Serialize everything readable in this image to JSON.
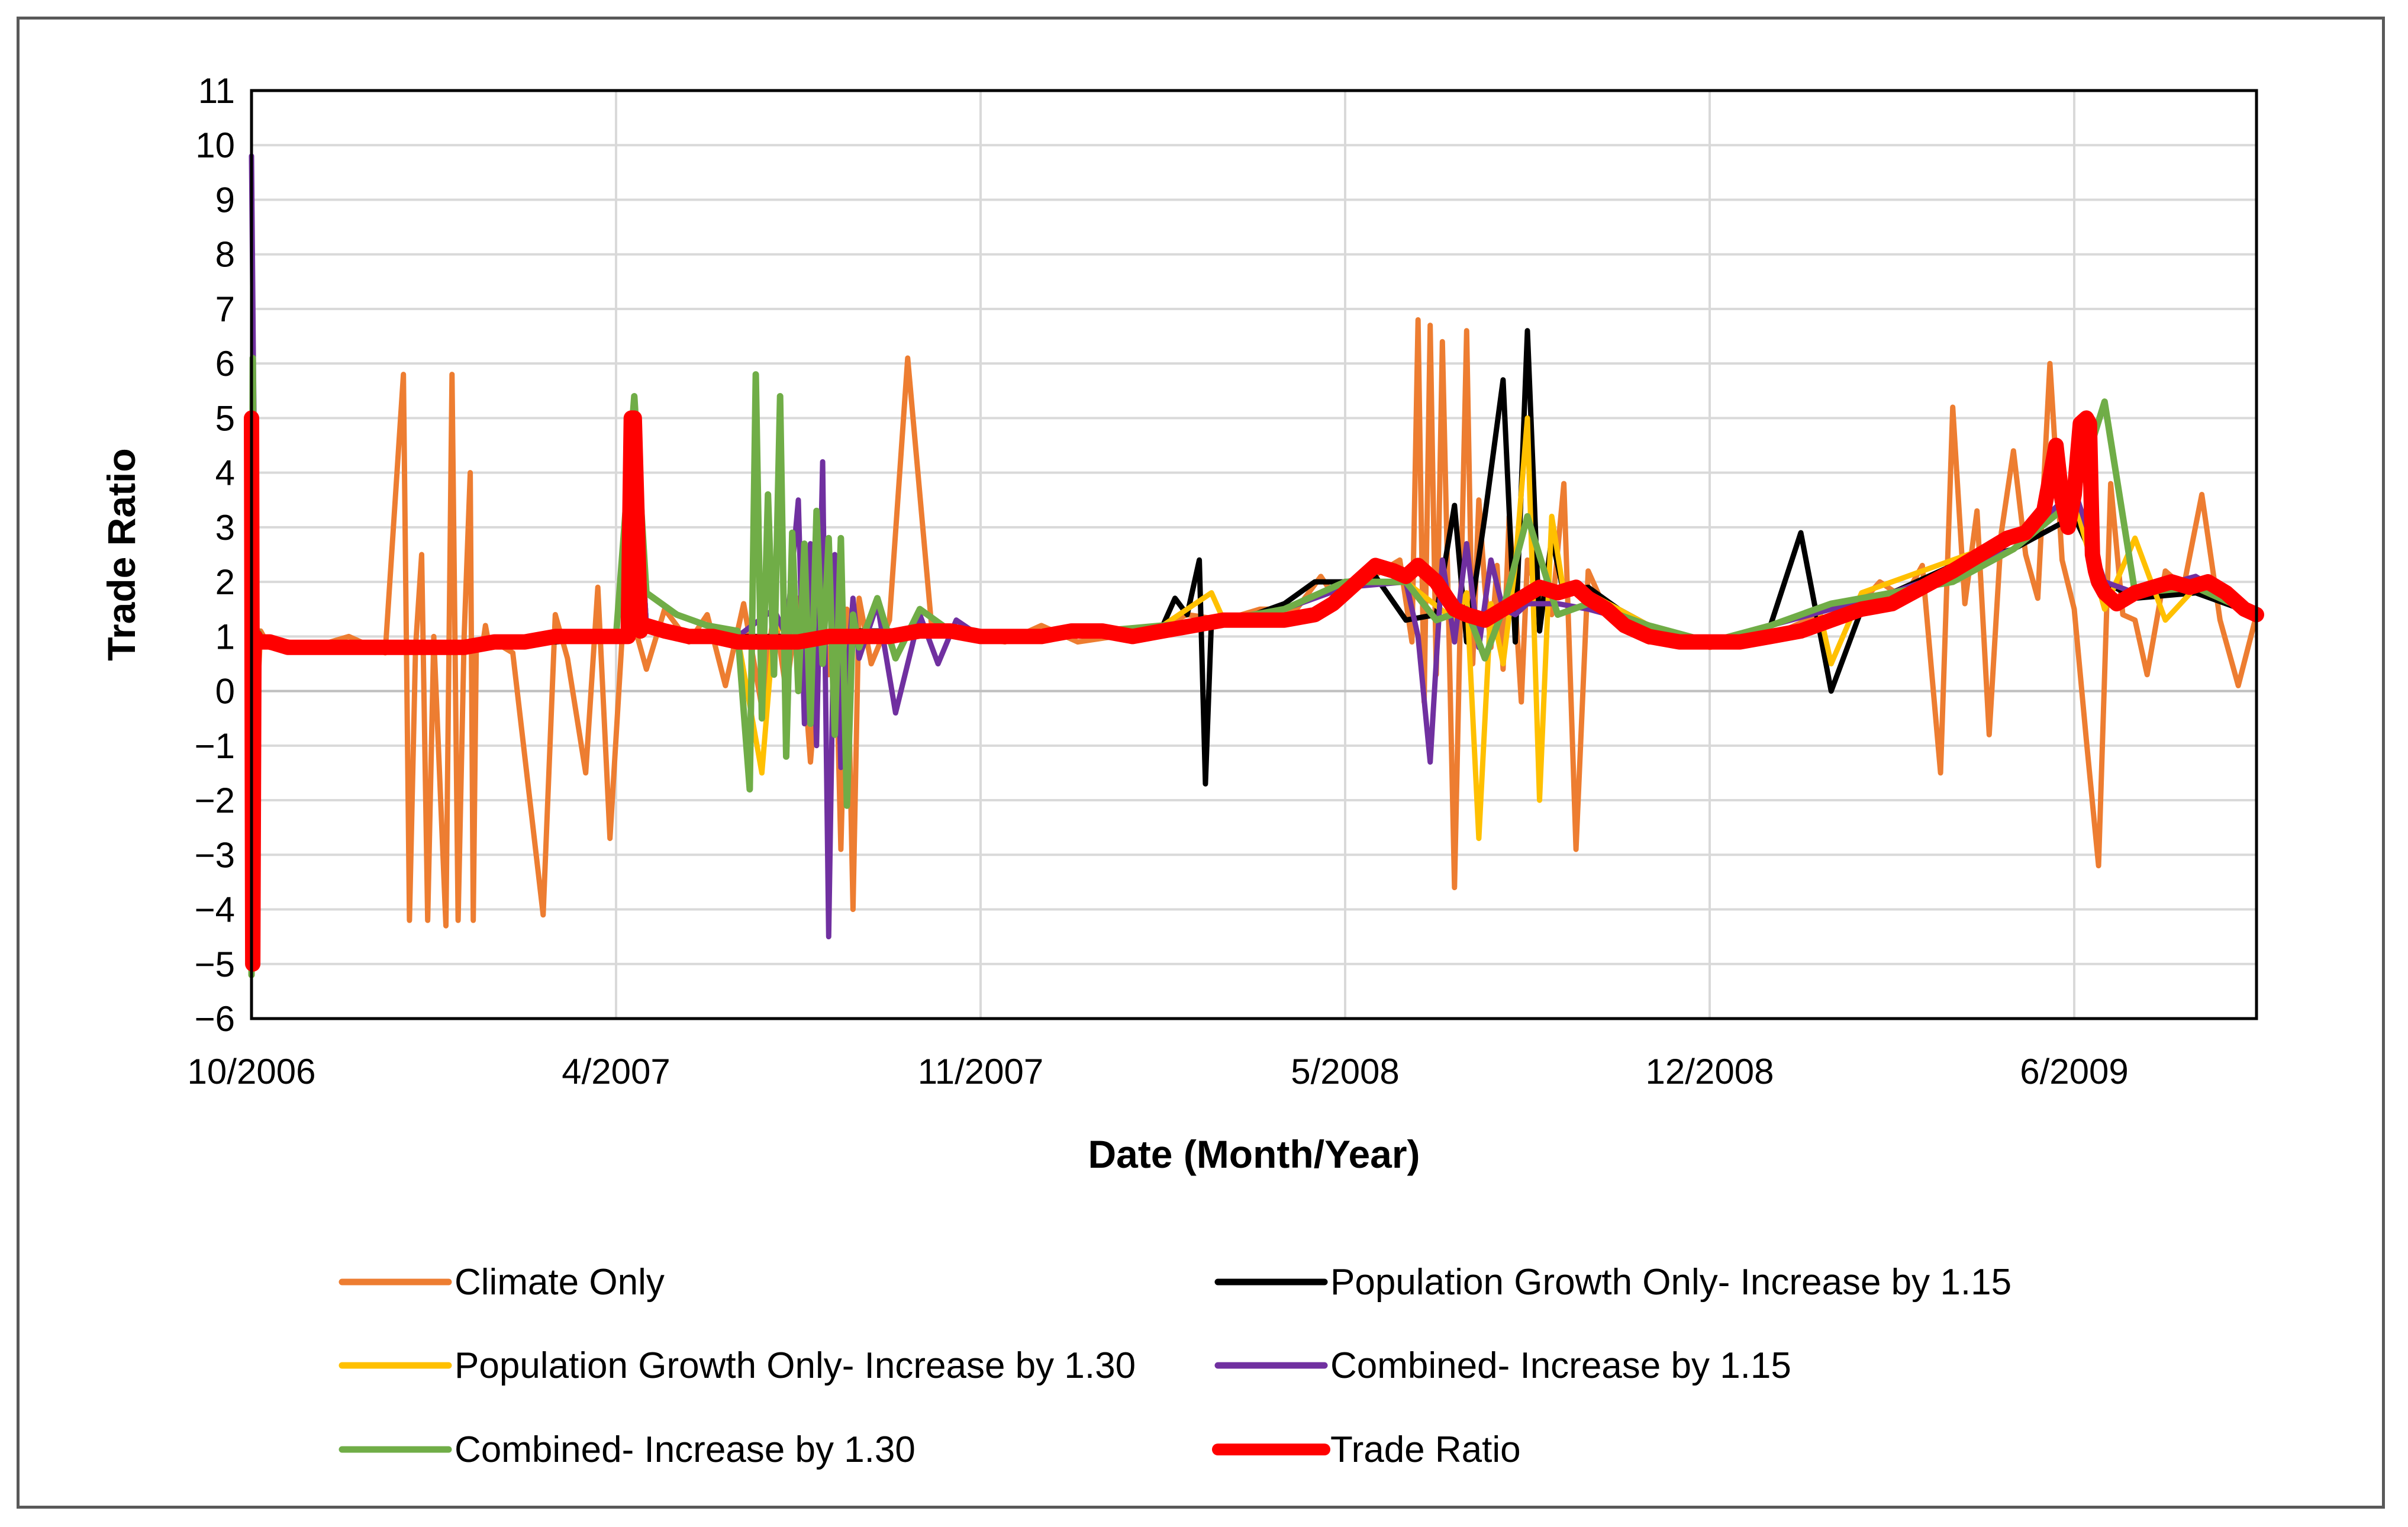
{
  "chart_data": {
    "type": "line",
    "title": "",
    "xlabel": "Date (Month/Year)",
    "ylabel": "Trade Ratio",
    "ylim": [
      -6,
      11
    ],
    "yticks": [
      -6,
      -5,
      -4,
      -3,
      -2,
      -1,
      0,
      1,
      2,
      3,
      4,
      5,
      6,
      7,
      8,
      9,
      10,
      11
    ],
    "ytick_labels": [
      "−6",
      "−5",
      "−4",
      "−3",
      "−2",
      "−1",
      "0",
      "1",
      "2",
      "3",
      "4",
      "5",
      "6",
      "7",
      "8",
      "9",
      "10",
      "11"
    ],
    "x_unit": "months since 10/2006",
    "xlim": [
      0,
      33
    ],
    "xticks": [
      0,
      6,
      12,
      18,
      24,
      30
    ],
    "xtick_labels": [
      "10/2006",
      "4/2007",
      "11/2007",
      "5/2008",
      "12/2008",
      "6/2009"
    ],
    "grid": true,
    "legend_position": "bottom",
    "series": [
      {
        "name": "Climate Only",
        "color": "#ED7D31",
        "x": [
          0.0,
          0.05,
          0.15,
          0.3,
          0.6,
          1.0,
          1.6,
          2.2,
          2.5,
          2.6,
          2.7,
          2.8,
          2.9,
          3.0,
          3.2,
          3.3,
          3.4,
          3.5,
          3.6,
          3.65,
          3.7,
          3.8,
          3.85,
          3.9,
          4.0,
          4.3,
          4.8,
          5.0,
          5.2,
          5.5,
          5.7,
          5.9,
          6.1,
          6.3,
          6.5,
          6.8,
          7.2,
          7.5,
          7.8,
          8.1,
          8.4,
          8.6,
          8.8,
          9.0,
          9.2,
          9.4,
          9.5,
          9.6,
          9.7,
          9.8,
          9.9,
          10.0,
          10.2,
          10.5,
          10.8,
          11.2,
          11.8,
          12.4,
          13.0,
          13.6,
          14.2,
          14.8,
          15.4,
          16.0,
          16.6,
          17.2,
          17.6,
          17.9,
          18.2,
          18.6,
          18.9,
          19.1,
          19.2,
          19.3,
          19.4,
          19.5,
          19.6,
          19.7,
          19.8,
          19.9,
          20.0,
          20.1,
          20.2,
          20.3,
          20.4,
          20.5,
          20.6,
          20.7,
          20.8,
          20.9,
          21.0,
          21.2,
          21.4,
          21.6,
          21.8,
          22.0,
          22.2,
          22.4,
          22.6,
          22.8,
          23.0,
          23.5,
          24.0,
          24.4,
          24.8,
          25.2,
          25.6,
          26.0,
          26.4,
          26.8,
          27.2,
          27.5,
          27.8,
          28.0,
          28.2,
          28.4,
          28.6,
          28.8,
          29.0,
          29.2,
          29.4,
          29.6,
          29.8,
          30.0,
          30.2,
          30.4,
          30.6,
          30.8,
          31.0,
          31.2,
          31.5,
          31.8,
          32.1,
          32.4,
          32.7,
          33.0
        ],
        "y": [
          0.9,
          -1.2,
          1.1,
          0.8,
          0.9,
          0.8,
          1.0,
          0.7,
          5.8,
          -4.2,
          0.8,
          2.5,
          -4.2,
          1.0,
          -4.3,
          5.8,
          -4.2,
          1.0,
          4.0,
          -4.2,
          0.9,
          0.8,
          1.2,
          0.9,
          0.9,
          0.7,
          -4.1,
          1.4,
          0.6,
          -1.5,
          1.9,
          -2.7,
          1.0,
          1.2,
          0.4,
          1.5,
          0.9,
          1.4,
          0.1,
          1.6,
          -0.3,
          1.5,
          0.0,
          1.7,
          -1.3,
          1.4,
          0.3,
          1.6,
          -2.9,
          1.5,
          -4.0,
          1.7,
          0.5,
          1.3,
          6.1,
          1.1,
          1.0,
          0.9,
          1.2,
          0.9,
          1.0,
          1.1,
          1.4,
          1.3,
          1.5,
          1.5,
          2.1,
          1.6,
          1.9,
          2.2,
          2.4,
          0.9,
          6.8,
          -0.2,
          6.7,
          0.3,
          6.4,
          1.5,
          -3.6,
          1.6,
          6.6,
          0.5,
          3.5,
          1.9,
          0.8,
          2.3,
          0.4,
          3.2,
          1.6,
          -0.2,
          2.4,
          1.7,
          1.4,
          3.8,
          -2.9,
          2.2,
          1.7,
          1.5,
          1.2,
          1.1,
          0.9,
          1.0,
          0.8,
          0.9,
          1.0,
          1.1,
          1.3,
          1.6,
          1.5,
          2.0,
          1.7,
          2.3,
          -1.5,
          5.2,
          1.6,
          3.3,
          -0.8,
          2.9,
          4.4,
          2.5,
          1.7,
          6.0,
          2.4,
          1.5,
          -0.9,
          -3.2,
          3.8,
          1.4,
          1.3,
          0.3,
          2.2,
          1.9,
          3.6,
          1.3,
          0.1,
          1.4
        ]
      },
      {
        "name": "Population Growth Only- Increase by 1.15",
        "color": "#000000",
        "x": [
          0.0,
          0.1,
          0.5,
          1.0,
          2.0,
          3.0,
          4.0,
          5.0,
          6.0,
          6.3,
          6.5,
          7.0,
          8.0,
          9.0,
          10.0,
          11.0,
          12.0,
          13.0,
          14.0,
          15.0,
          15.2,
          15.4,
          15.6,
          15.7,
          15.8,
          16.0,
          16.5,
          17.0,
          17.5,
          18.0,
          18.5,
          19.0,
          19.5,
          19.8,
          20.0,
          20.3,
          20.6,
          20.8,
          21.0,
          21.2,
          21.4,
          21.6,
          22.0,
          22.5,
          23.0,
          24.0,
          25.0,
          25.5,
          26.0,
          26.5,
          27.0,
          28.0,
          29.0,
          30.0,
          30.5,
          31.0,
          32.0,
          33.0
        ],
        "y": [
          1.0,
          0.9,
          0.9,
          0.8,
          0.8,
          0.8,
          0.9,
          0.9,
          1.0,
          5.0,
          1.2,
          1.1,
          1.0,
          1.0,
          1.1,
          1.1,
          1.0,
          1.0,
          1.1,
          1.2,
          1.7,
          1.4,
          2.4,
          -1.7,
          1.3,
          1.3,
          1.4,
          1.6,
          2.0,
          2.0,
          2.1,
          1.3,
          1.4,
          3.4,
          0.9,
          3.2,
          5.7,
          0.9,
          6.6,
          1.1,
          2.8,
          1.8,
          1.9,
          1.5,
          1.2,
          0.9,
          1.2,
          2.9,
          0.0,
          1.5,
          1.8,
          2.3,
          2.6,
          3.2,
          2.0,
          1.7,
          1.8,
          1.4
        ]
      },
      {
        "name": "Population Growth Only- Increase by 1.30",
        "color": "#FFC000",
        "x": [
          0.0,
          0.5,
          1.0,
          2.0,
          3.0,
          4.0,
          5.0,
          6.0,
          6.3,
          6.5,
          7.0,
          8.0,
          8.4,
          8.6,
          9.0,
          10.0,
          11.0,
          12.0,
          13.0,
          14.0,
          15.0,
          15.8,
          16.0,
          17.0,
          18.0,
          19.0,
          19.8,
          20.0,
          20.2,
          20.4,
          20.6,
          20.8,
          21.0,
          21.2,
          21.4,
          21.6,
          22.0,
          23.0,
          24.0,
          25.0,
          25.8,
          26.0,
          26.5,
          27.0,
          28.0,
          29.0,
          30.0,
          30.5,
          31.0,
          31.5,
          32.0,
          33.0
        ],
        "y": [
          1.0,
          0.9,
          0.8,
          0.8,
          0.8,
          0.9,
          1.0,
          1.0,
          5.0,
          1.2,
          1.1,
          1.0,
          -1.5,
          1.2,
          1.0,
          1.0,
          1.1,
          1.0,
          1.0,
          1.1,
          1.2,
          1.8,
          1.3,
          1.5,
          2.0,
          2.0,
          1.3,
          1.8,
          -2.7,
          1.6,
          0.5,
          2.3,
          5.0,
          -2.0,
          3.2,
          1.8,
          1.8,
          1.2,
          0.9,
          1.2,
          1.5,
          0.5,
          1.8,
          2.0,
          2.4,
          2.8,
          3.5,
          1.5,
          2.8,
          1.3,
          1.9,
          1.4
        ]
      },
      {
        "name": "Combined- Increase by 1.15",
        "color": "#7030A0",
        "x": [
          0.0,
          0.03,
          0.08,
          0.2,
          0.5,
          1.0,
          2.0,
          3.0,
          4.0,
          5.0,
          6.0,
          6.3,
          6.5,
          7.0,
          8.0,
          8.6,
          8.8,
          9.0,
          9.1,
          9.2,
          9.3,
          9.4,
          9.5,
          9.6,
          9.7,
          9.9,
          10.0,
          10.3,
          10.6,
          11.0,
          11.3,
          11.6,
          12.0,
          13.0,
          14.0,
          15.0,
          16.0,
          17.0,
          18.0,
          19.0,
          19.2,
          19.4,
          19.6,
          19.8,
          20.0,
          20.2,
          20.4,
          20.6,
          20.8,
          21.0,
          21.5,
          22.0,
          23.0,
          24.0,
          25.0,
          26.0,
          27.0,
          28.0,
          29.0,
          30.0,
          30.5,
          31.0,
          32.0,
          33.0
        ],
        "y": [
          9.8,
          6.1,
          1.1,
          0.9,
          0.9,
          0.8,
          0.8,
          0.8,
          0.9,
          1.0,
          1.0,
          5.0,
          1.2,
          1.1,
          1.0,
          1.5,
          1.0,
          3.5,
          -0.6,
          2.7,
          -1.0,
          4.2,
          -4.5,
          2.5,
          -1.4,
          1.7,
          0.6,
          1.6,
          -0.4,
          1.4,
          0.5,
          1.3,
          1.0,
          1.0,
          1.1,
          1.2,
          1.3,
          1.5,
          1.9,
          2.0,
          1.0,
          -1.3,
          2.4,
          0.9,
          2.7,
          0.8,
          2.4,
          1.5,
          1.4,
          1.6,
          1.6,
          1.5,
          1.2,
          0.9,
          1.2,
          1.5,
          1.8,
          2.2,
          2.6,
          3.7,
          2.0,
          1.8,
          2.1,
          1.4
        ]
      },
      {
        "name": "Combined- Increase by 1.30",
        "color": "#70AD47",
        "x": [
          0.0,
          0.02,
          0.05,
          0.2,
          0.5,
          1.0,
          2.0,
          3.0,
          4.0,
          5.0,
          6.0,
          6.3,
          6.5,
          7.0,
          7.5,
          8.0,
          8.2,
          8.3,
          8.4,
          8.5,
          8.6,
          8.7,
          8.8,
          8.9,
          9.0,
          9.1,
          9.2,
          9.3,
          9.4,
          9.5,
          9.6,
          9.7,
          9.8,
          9.9,
          10.0,
          10.3,
          10.6,
          11.0,
          11.5,
          12.0,
          13.0,
          14.0,
          15.0,
          16.0,
          17.0,
          18.0,
          19.0,
          19.5,
          20.0,
          20.3,
          20.6,
          21.0,
          21.5,
          22.0,
          23.0,
          24.0,
          25.0,
          26.0,
          27.0,
          28.0,
          29.0,
          30.0,
          30.5,
          31.0,
          32.0,
          33.0
        ],
        "y": [
          -5.2,
          6.1,
          1.2,
          0.9,
          0.9,
          0.8,
          0.8,
          0.8,
          0.9,
          1.0,
          1.0,
          5.4,
          1.8,
          1.4,
          1.2,
          1.1,
          -1.8,
          5.8,
          -0.5,
          3.6,
          0.3,
          5.4,
          -1.2,
          2.9,
          0.0,
          2.7,
          -0.6,
          3.3,
          0.5,
          2.8,
          -0.8,
          2.8,
          -2.1,
          1.4,
          0.8,
          1.7,
          0.6,
          1.5,
          1.1,
          1.0,
          1.0,
          1.1,
          1.2,
          1.3,
          1.5,
          2.0,
          2.0,
          1.3,
          1.5,
          0.6,
          1.5,
          3.2,
          1.4,
          1.6,
          1.2,
          0.9,
          1.2,
          1.6,
          1.8,
          2.0,
          2.6,
          3.5,
          5.3,
          1.8,
          1.9,
          1.4
        ]
      },
      {
        "name": "Trade Ratio",
        "color": "#FF0000",
        "x": [
          0.0,
          0.02,
          0.04,
          0.06,
          0.1,
          0.3,
          0.6,
          1.0,
          1.5,
          2.0,
          2.5,
          3.0,
          3.5,
          4.0,
          4.5,
          5.0,
          5.5,
          6.0,
          6.2,
          6.25,
          6.3,
          6.4,
          6.45,
          6.5,
          6.8,
          7.2,
          7.6,
          8.0,
          8.5,
          9.0,
          9.5,
          10.0,
          10.5,
          11.0,
          11.5,
          12.0,
          12.5,
          13.0,
          13.5,
          14.0,
          14.5,
          15.0,
          15.5,
          16.0,
          16.5,
          17.0,
          17.5,
          17.8,
          18.0,
          18.2,
          18.5,
          18.8,
          19.0,
          19.2,
          19.5,
          19.8,
          20.0,
          20.3,
          20.6,
          20.9,
          21.2,
          21.5,
          21.8,
          22.0,
          22.3,
          22.6,
          23.0,
          23.5,
          24.0,
          24.5,
          25.0,
          25.5,
          26.0,
          26.5,
          27.0,
          27.5,
          28.0,
          28.3,
          28.6,
          28.9,
          29.2,
          29.5,
          29.7,
          29.8,
          29.9,
          30.0,
          30.1,
          30.2,
          30.25,
          30.3,
          30.35,
          30.4,
          30.5,
          30.7,
          31.0,
          31.3,
          31.6,
          31.9,
          32.2,
          32.5,
          32.8,
          33.0
        ],
        "y": [
          5.0,
          -5.0,
          0.8,
          1.0,
          0.9,
          0.9,
          0.8,
          0.8,
          0.8,
          0.8,
          0.8,
          0.8,
          0.8,
          0.9,
          0.9,
          1.0,
          1.0,
          1.0,
          1.0,
          5.0,
          5.0,
          1.1,
          1.2,
          1.2,
          1.1,
          1.0,
          1.0,
          0.9,
          0.9,
          0.9,
          1.0,
          1.0,
          1.0,
          1.1,
          1.1,
          1.0,
          1.0,
          1.0,
          1.1,
          1.1,
          1.0,
          1.1,
          1.2,
          1.3,
          1.3,
          1.3,
          1.4,
          1.6,
          1.8,
          2.0,
          2.3,
          2.2,
          2.1,
          2.3,
          2.0,
          1.5,
          1.4,
          1.3,
          1.5,
          1.7,
          1.9,
          1.8,
          1.9,
          1.7,
          1.5,
          1.2,
          1.0,
          0.9,
          0.9,
          0.9,
          1.0,
          1.1,
          1.3,
          1.5,
          1.6,
          1.9,
          2.2,
          2.4,
          2.6,
          2.8,
          2.9,
          3.3,
          4.5,
          3.5,
          3.0,
          3.6,
          4.9,
          5.0,
          4.9,
          2.5,
          2.2,
          2.0,
          1.8,
          1.6,
          1.8,
          1.9,
          2.0,
          1.9,
          2.0,
          1.8,
          1.5,
          1.4
        ]
      }
    ]
  }
}
